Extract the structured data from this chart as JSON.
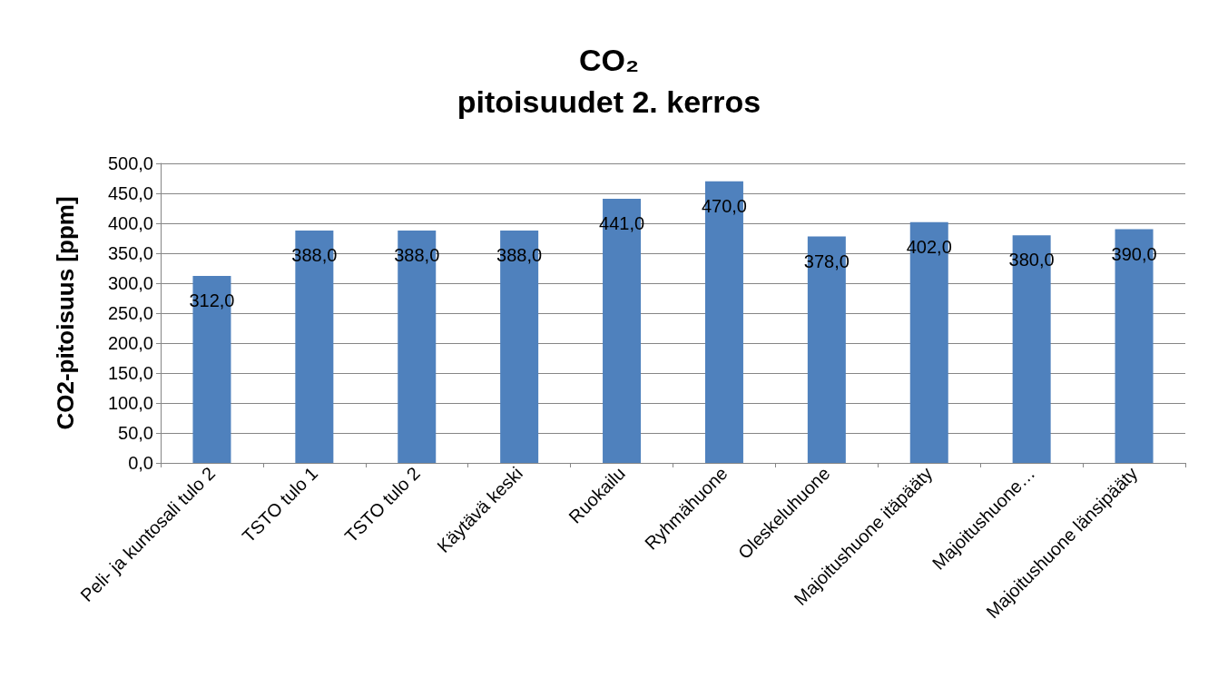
{
  "chart_data": {
    "type": "bar",
    "title": "CO₂\npitoisuudet 2. kerros",
    "ylabel": "CO2-pitoisuus [ppm]",
    "categories": [
      "Peli- ja kuntosali tulo 2",
      "TSTO tulo 1",
      "TSTO tulo 2",
      "Käytävä keski",
      "Ruokailu",
      "Ryhmähuone",
      "Oleskeluhuone",
      "Majoitushuone itäpääty",
      "Majoitushuone…",
      "Majoitushuone länsipääty"
    ],
    "values": [
      312,
      388,
      388,
      388,
      441,
      470,
      378,
      402,
      380,
      390
    ],
    "value_labels": [
      "312,0",
      "388,0",
      "388,0",
      "388,0",
      "441,0",
      "470,0",
      "378,0",
      "402,0",
      "380,0",
      "390,0"
    ],
    "color": "#4f81bd",
    "ylim": [
      0,
      500
    ],
    "yticks": [
      {
        "value": 0,
        "label": "0,0"
      },
      {
        "value": 50,
        "label": "50,0"
      },
      {
        "value": 100,
        "label": "100,0"
      },
      {
        "value": 150,
        "label": "150,0"
      },
      {
        "value": 200,
        "label": "200,0"
      },
      {
        "value": 250,
        "label": "250,0"
      },
      {
        "value": 300,
        "label": "300,0"
      },
      {
        "value": 350,
        "label": "350,0"
      },
      {
        "value": 400,
        "label": "400,0"
      },
      {
        "value": 450,
        "label": "450,0"
      },
      {
        "value": 500,
        "label": "500,0"
      }
    ],
    "grid": true
  }
}
